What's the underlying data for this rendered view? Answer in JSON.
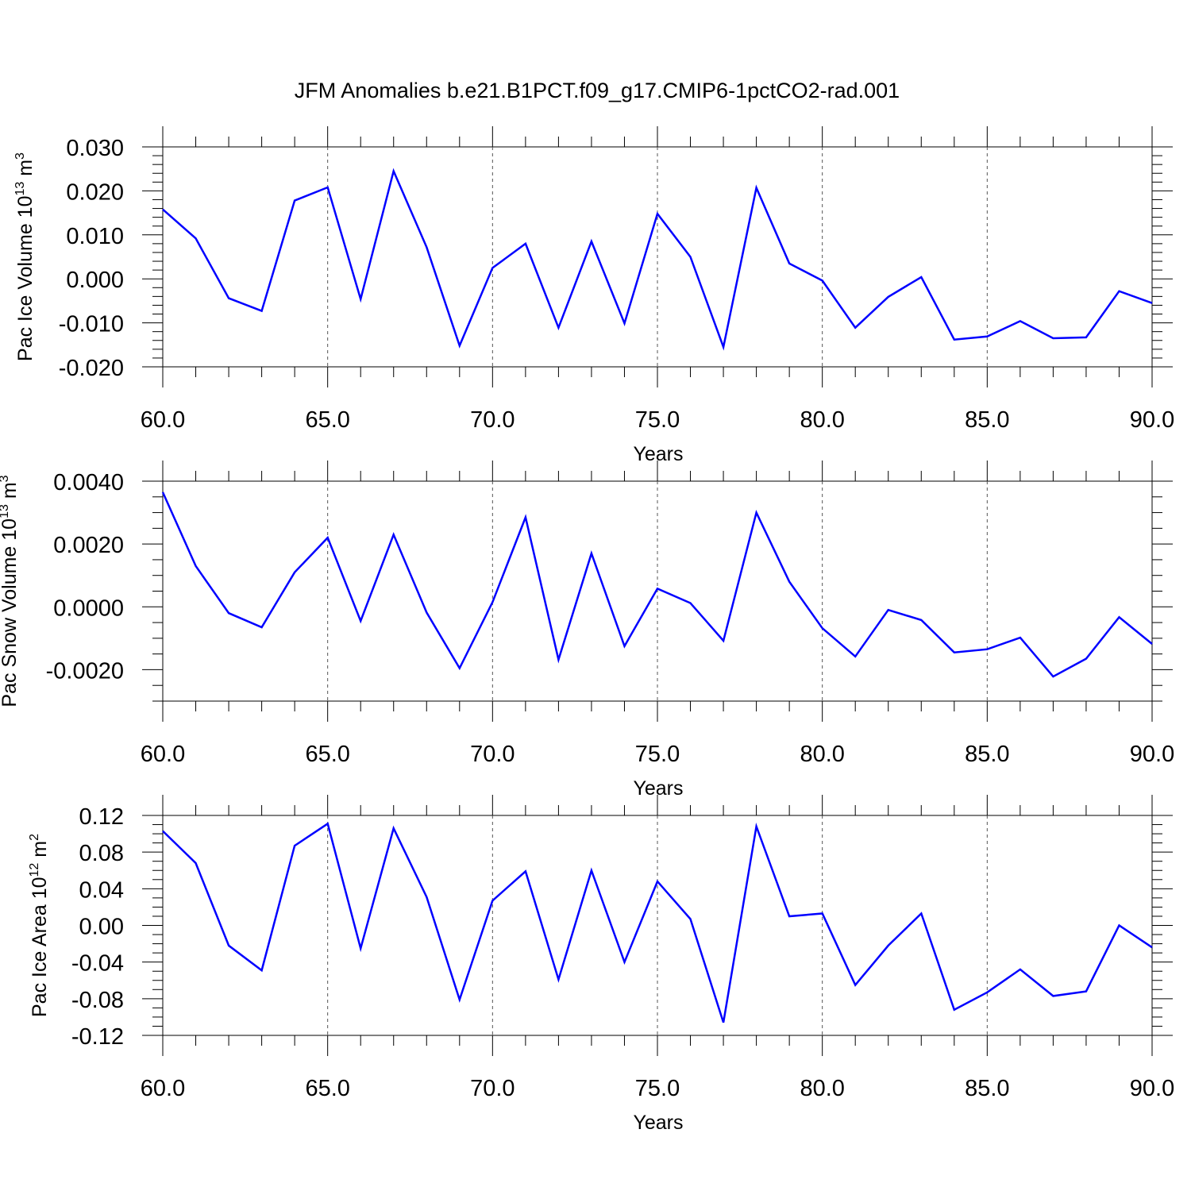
{
  "title": "JFM Anomalies b.e21.B1PCT.f09_g17.CMIP6-1pctCO2-rad.001",
  "colors": {
    "line": "#0000ff",
    "grid": "#555555",
    "axis": "#000000"
  },
  "chart_data": [
    {
      "type": "line",
      "ylabel": "Pac Ice Volume 10",
      "ylabel_sup": "13",
      "ylabel_unit": " m",
      "ylabel_unit_sup": "3",
      "xlabel": "Years",
      "xlim": [
        60,
        90
      ],
      "ylim": [
        -0.022,
        0.032
      ],
      "x_ticks": [
        "60.0",
        "65.0",
        "70.0",
        "75.0",
        "80.0",
        "85.0",
        "90.0"
      ],
      "y_ticks": [
        "-0.020",
        "-0.010",
        "0.000",
        "0.010",
        "0.020",
        "0.030"
      ],
      "grid_x": true,
      "x": [
        60,
        61,
        62,
        63,
        64,
        65,
        66,
        67,
        68,
        69,
        70,
        71,
        72,
        73,
        74,
        75,
        76,
        77,
        78,
        79,
        80,
        81,
        82,
        83,
        84,
        85,
        86,
        87,
        88,
        89,
        90
      ],
      "values": [
        0.0158,
        0.0092,
        -0.0044,
        -0.0073,
        0.0178,
        0.0208,
        -0.0046,
        0.0245,
        0.0072,
        -0.0152,
        0.0025,
        0.008,
        -0.0111,
        0.0085,
        -0.0101,
        0.0148,
        0.005,
        -0.0155,
        0.0207,
        0.0035,
        -0.0004,
        -0.0111,
        -0.0041,
        0.0004,
        -0.0138,
        -0.0131,
        -0.0096,
        -0.0135,
        -0.0133,
        -0.0028,
        -0.0055
      ]
    },
    {
      "type": "line",
      "ylabel": "Pac Snow Volume 10",
      "ylabel_sup": "13",
      "ylabel_unit": " m",
      "ylabel_unit_sup": "3",
      "xlabel": "Years",
      "xlim": [
        60,
        90
      ],
      "ylim": [
        -0.003,
        0.004
      ],
      "x_ticks": [
        "60.0",
        "65.0",
        "70.0",
        "75.0",
        "80.0",
        "85.0",
        "90.0"
      ],
      "y_ticks": [
        "-0.0020",
        "0.0000",
        "0.0020",
        "0.0040"
      ],
      "grid_x": true,
      "x": [
        60,
        61,
        62,
        63,
        64,
        65,
        66,
        67,
        68,
        69,
        70,
        71,
        72,
        73,
        74,
        75,
        76,
        77,
        78,
        79,
        80,
        81,
        82,
        83,
        84,
        85,
        86,
        87,
        88,
        89,
        90
      ],
      "values": [
        0.00365,
        0.0013,
        -0.0002,
        -0.00065,
        0.0011,
        0.0022,
        -0.00045,
        0.0023,
        -0.00018,
        -0.00195,
        0.00015,
        0.00285,
        -0.00168,
        0.0017,
        -0.00125,
        0.00058,
        0.00012,
        -0.00108,
        0.003,
        0.0008,
        -0.00068,
        -0.00158,
        -0.0001,
        -0.00042,
        -0.00145,
        -0.00135,
        -0.00098,
        -0.00222,
        -0.00165,
        -0.00033,
        -0.00118
      ]
    },
    {
      "type": "line",
      "ylabel": "Pac Ice Area 10",
      "ylabel_sup": "12",
      "ylabel_unit": " m",
      "ylabel_unit_sup": "2",
      "xlabel": "Years",
      "xlim": [
        60,
        90
      ],
      "ylim": [
        -0.12,
        0.12
      ],
      "x_ticks": [
        "60.0",
        "65.0",
        "70.0",
        "75.0",
        "80.0",
        "85.0",
        "90.0"
      ],
      "y_ticks": [
        "-0.12",
        "-0.08",
        "-0.04",
        "0.00",
        "0.04",
        "0.08",
        "0.12"
      ],
      "grid_x": true,
      "x": [
        60,
        61,
        62,
        63,
        64,
        65,
        66,
        67,
        68,
        69,
        70,
        71,
        72,
        73,
        74,
        75,
        76,
        77,
        78,
        79,
        80,
        81,
        82,
        83,
        84,
        85,
        86,
        87,
        88,
        89,
        90
      ],
      "values": [
        0.103,
        0.068,
        -0.022,
        -0.049,
        0.087,
        0.111,
        -0.025,
        0.106,
        0.031,
        -0.081,
        0.027,
        0.059,
        -0.059,
        0.06,
        -0.04,
        0.048,
        0.007,
        -0.106,
        0.108,
        0.01,
        0.013,
        -0.065,
        -0.022,
        0.013,
        -0.092,
        -0.073,
        -0.048,
        -0.077,
        -0.072,
        0.0,
        -0.024
      ]
    }
  ]
}
